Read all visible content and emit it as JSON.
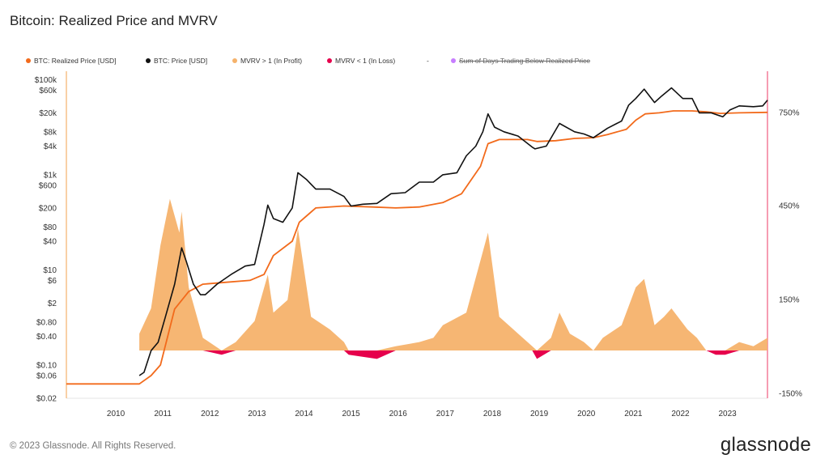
{
  "title": "Bitcoin: Realized Price and MVRV",
  "legend": [
    {
      "label": "BTC: Realized Price [USD]",
      "color": "#f26a1b"
    },
    {
      "label": "BTC: Price [USD]",
      "color": "#111111"
    },
    {
      "label": "MVRV > 1 (In Profit)",
      "color": "#f5b26b"
    },
    {
      "label": "MVRV < 1 (In Loss)",
      "color": "#e6004c"
    },
    {
      "label": "-",
      "color": ""
    },
    {
      "label": "Sum of Days Trading Below Realized Price",
      "color": "#c77dff",
      "struck": true
    }
  ],
  "footer": "© 2023 Glassnode. All Rights Reserved.",
  "brand": "glassnode",
  "chart_data": {
    "type": "line",
    "x_ticks": [
      "2010",
      "2011",
      "2012",
      "2013",
      "2014",
      "2015",
      "2016",
      "2017",
      "2018",
      "2019",
      "2020",
      "2021",
      "2022",
      "2023"
    ],
    "y_ticks": [
      "$100k",
      "$60k",
      "$20k",
      "$8k",
      "$4k",
      "$1k",
      "$600",
      "$200",
      "$80",
      "$40",
      "$10",
      "$6",
      "$2",
      "$0.80",
      "$0.40",
      "$0.10",
      "$0.06",
      "$0.02"
    ],
    "y_scale": "log",
    "y_range": [
      0.02,
      150000
    ],
    "y2_ticks": [
      "750%",
      "450%",
      "150%",
      "-150%"
    ],
    "x_range": [
      2009.0,
      2023.9
    ],
    "series": [
      {
        "name": "BTC: Price [USD]",
        "color": "#111111",
        "x": [
          2010.55,
          2010.65,
          2010.8,
          2010.95,
          2011.1,
          2011.3,
          2011.45,
          2011.55,
          2011.7,
          2011.85,
          2011.95,
          2012.2,
          2012.5,
          2012.8,
          2013.0,
          2013.2,
          2013.28,
          2013.4,
          2013.6,
          2013.8,
          2013.92,
          2014.1,
          2014.3,
          2014.6,
          2014.9,
          2015.05,
          2015.3,
          2015.6,
          2015.9,
          2016.2,
          2016.5,
          2016.8,
          2017.0,
          2017.3,
          2017.5,
          2017.7,
          2017.85,
          2017.96,
          2018.1,
          2018.3,
          2018.6,
          2018.9,
          2018.96,
          2019.2,
          2019.48,
          2019.8,
          2020.0,
          2020.2,
          2020.5,
          2020.8,
          2020.95,
          2021.1,
          2021.28,
          2021.5,
          2021.65,
          2021.86,
          2022.1,
          2022.3,
          2022.45,
          2022.7,
          2022.95,
          2023.1,
          2023.3,
          2023.6,
          2023.8,
          2023.9
        ],
        "y": [
          0.06,
          0.07,
          0.2,
          0.3,
          1,
          5,
          29,
          15,
          5,
          3,
          3,
          5,
          8,
          12,
          13,
          90,
          230,
          120,
          100,
          200,
          1100,
          800,
          500,
          500,
          350,
          220,
          240,
          250,
          400,
          420,
          700,
          700,
          1000,
          1100,
          2500,
          4000,
          8000,
          19000,
          10000,
          8000,
          6500,
          3800,
          3500,
          4000,
          12000,
          8000,
          7200,
          6000,
          9500,
          13500,
          29000,
          40000,
          63000,
          33000,
          45000,
          67000,
          40000,
          40000,
          20000,
          20000,
          16500,
          23000,
          28000,
          27000,
          28000,
          37000
        ]
      },
      {
        "name": "BTC: Realized Price [USD]",
        "color": "#f26a1b",
        "x": [
          2009.0,
          2010.55,
          2010.8,
          2011.0,
          2011.3,
          2011.6,
          2011.9,
          2012.4,
          2012.9,
          2013.2,
          2013.4,
          2013.8,
          2013.95,
          2014.3,
          2014.9,
          2015.5,
          2016.0,
          2016.5,
          2017.0,
          2017.4,
          2017.8,
          2017.96,
          2018.2,
          2018.8,
          2019.0,
          2019.4,
          2019.8,
          2020.2,
          2020.5,
          2020.9,
          2021.1,
          2021.3,
          2021.6,
          2021.9,
          2022.3,
          2022.6,
          2022.9,
          2023.3,
          2023.9
        ],
        "y": [
          0.04,
          0.04,
          0.06,
          0.1,
          1.5,
          3.5,
          5,
          5.5,
          6,
          8,
          20,
          40,
          100,
          200,
          220,
          210,
          200,
          210,
          260,
          400,
          1500,
          4500,
          5500,
          5500,
          5000,
          5200,
          5800,
          6000,
          7000,
          9000,
          14000,
          19000,
          20000,
          22000,
          22000,
          21000,
          19500,
          20000,
          20500
        ]
      },
      {
        "name": "MVRV > 1 (In Profit)",
        "color": "#f5b26b",
        "x": [
          2010.55,
          2010.8,
          2011.0,
          2011.2,
          2011.4,
          2011.45,
          2011.6,
          2011.9,
          2012.3,
          2012.6,
          2013.0,
          2013.28,
          2013.4,
          2013.7,
          2013.92,
          2014.2,
          2014.6,
          2014.9,
          2015.0,
          2015.6,
          2016.0,
          2016.5,
          2016.8,
          2017.0,
          2017.5,
          2017.96,
          2018.2,
          2018.6,
          2018.9,
          2019.0,
          2019.3,
          2019.48,
          2019.7,
          2020.0,
          2020.2,
          2020.4,
          2020.8,
          2021.1,
          2021.28,
          2021.5,
          2021.7,
          2021.86,
          2022.2,
          2022.4,
          2022.6,
          2022.8,
          2023.0,
          2023.3,
          2023.6,
          2023.9
        ],
        "y": [
          0.4,
          1.0,
          2.5,
          3.6,
          2.8,
          3.3,
          1.5,
          0.3,
          -0.1,
          0.2,
          0.7,
          1.8,
          0.9,
          1.2,
          2.9,
          0.8,
          0.5,
          0.2,
          -0.1,
          -0.2,
          0.1,
          0.2,
          0.3,
          0.6,
          0.9,
          2.8,
          0.8,
          0.4,
          0.1,
          -0.2,
          0.3,
          0.9,
          0.4,
          0.2,
          0.0,
          0.3,
          0.6,
          1.5,
          1.7,
          0.6,
          0.8,
          1.0,
          0.5,
          0.3,
          0.0,
          -0.1,
          -0.1,
          0.2,
          0.1,
          0.3
        ]
      }
    ]
  }
}
